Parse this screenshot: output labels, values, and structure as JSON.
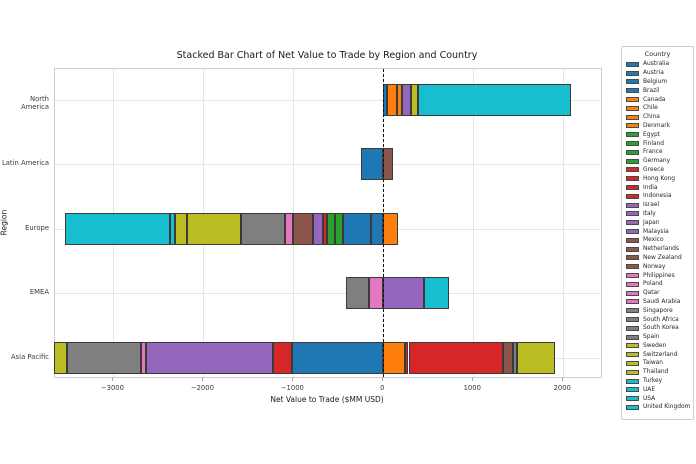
{
  "chart_data": {
    "type": "bar",
    "orientation": "horizontal",
    "stacked": true,
    "title": "Stacked Bar Chart of Net Value to Trade by Region and Country",
    "xlabel": "Net Value to Trade ($MM USD)",
    "ylabel": "Region",
    "categories": [
      "North America",
      "Latin America",
      "Europe",
      "EMEA",
      "Asia Pacific"
    ],
    "xticks": [
      -3000,
      -2000,
      -1000,
      0,
      1000,
      2000
    ],
    "xlim": [
      -3650,
      2420
    ],
    "grid": true,
    "zero_line": {
      "x": 0,
      "style": "dashed",
      "color": "#111111"
    },
    "legend": {
      "title": "Country",
      "position": "right",
      "entries": [
        {
          "label": "Australia",
          "color": "#1f77b4"
        },
        {
          "label": "Austria",
          "color": "#1f77b4"
        },
        {
          "label": "Belgium",
          "color": "#1f77b4"
        },
        {
          "label": "Brazil",
          "color": "#1f77b4"
        },
        {
          "label": "Canada",
          "color": "#ff7f0e"
        },
        {
          "label": "Chile",
          "color": "#ff7f0e"
        },
        {
          "label": "China",
          "color": "#ff7f0e"
        },
        {
          "label": "Denmark",
          "color": "#ff7f0e"
        },
        {
          "label": "Egypt",
          "color": "#2ca02c"
        },
        {
          "label": "Finland",
          "color": "#2ca02c"
        },
        {
          "label": "France",
          "color": "#2ca02c"
        },
        {
          "label": "Germany",
          "color": "#2ca02c"
        },
        {
          "label": "Greece",
          "color": "#d62728"
        },
        {
          "label": "Hong Kong",
          "color": "#d62728"
        },
        {
          "label": "India",
          "color": "#d62728"
        },
        {
          "label": "Indonesia",
          "color": "#d62728"
        },
        {
          "label": "Israel",
          "color": "#9467bd"
        },
        {
          "label": "Italy",
          "color": "#9467bd"
        },
        {
          "label": "Japan",
          "color": "#9467bd"
        },
        {
          "label": "Malaysia",
          "color": "#9467bd"
        },
        {
          "label": "Mexico",
          "color": "#8c564b"
        },
        {
          "label": "Netherlands",
          "color": "#8c564b"
        },
        {
          "label": "New Zealand",
          "color": "#8c564b"
        },
        {
          "label": "Norway",
          "color": "#8c564b"
        },
        {
          "label": "Philippines",
          "color": "#e377c2"
        },
        {
          "label": "Poland",
          "color": "#e377c2"
        },
        {
          "label": "Qatar",
          "color": "#e377c2"
        },
        {
          "label": "Saudi Arabia",
          "color": "#e377c2"
        },
        {
          "label": "Singapore",
          "color": "#7f7f7f"
        },
        {
          "label": "South Africa",
          "color": "#7f7f7f"
        },
        {
          "label": "South Korea",
          "color": "#7f7f7f"
        },
        {
          "label": "Spain",
          "color": "#7f7f7f"
        },
        {
          "label": "Sweden",
          "color": "#bcbd22"
        },
        {
          "label": "Switzerland",
          "color": "#bcbd22"
        },
        {
          "label": "Taiwan",
          "color": "#bcbd22"
        },
        {
          "label": "Thailand",
          "color": "#bcbd22"
        },
        {
          "label": "Turkey",
          "color": "#17becf"
        },
        {
          "label": "UAE",
          "color": "#17becf"
        },
        {
          "label": "USA",
          "color": "#17becf"
        },
        {
          "label": "United Kingdom",
          "color": "#17becf"
        }
      ]
    },
    "bars": [
      {
        "region": "North America",
        "segments": [
          {
            "country": "Brazil",
            "color": "#1f77b4",
            "value": 41
          },
          {
            "country": "Canada",
            "color": "#ff7f0e",
            "value": 111
          },
          {
            "country": "Chile",
            "color": "#ff7f0e",
            "value": 56
          },
          {
            "country": "Malaysia",
            "color": "#9467bd",
            "value": 100
          },
          {
            "country": "Sweden",
            "color": "#bcbd22",
            "value": 76
          },
          {
            "country": "USA",
            "color": "#17becf",
            "value": 1700
          }
        ]
      },
      {
        "region": "Latin America",
        "segments": [
          {
            "country": "Brazil",
            "color": "#1f77b4",
            "value": -244
          },
          {
            "country": "Mexico",
            "color": "#8c564b",
            "value": 111
          }
        ]
      },
      {
        "region": "Europe",
        "segments": [
          {
            "country": "Austria",
            "color": "#1f77b4",
            "value": -141
          },
          {
            "country": "Belgium",
            "color": "#1f77b4",
            "value": -303
          },
          {
            "country": "Denmark",
            "color": "#ff7f0e",
            "value": 160
          },
          {
            "country": "Finland",
            "color": "#2ca02c",
            "value": -93
          },
          {
            "country": "France",
            "color": "#2ca02c",
            "value": -92
          },
          {
            "country": "Greece",
            "color": "#d62728",
            "value": -37
          },
          {
            "country": "Italy",
            "color": "#9467bd",
            "value": -119
          },
          {
            "country": "Netherlands",
            "color": "#8c564b",
            "value": -214
          },
          {
            "country": "Poland",
            "color": "#e377c2",
            "value": -93
          },
          {
            "country": "Spain",
            "color": "#7f7f7f",
            "value": -492
          },
          {
            "country": "Sweden",
            "color": "#bcbd22",
            "value": -600
          },
          {
            "country": "Switzerland",
            "color": "#bcbd22",
            "value": -137
          },
          {
            "country": "Turkey",
            "color": "#17becf",
            "value": -52
          },
          {
            "country": "United Kingdom",
            "color": "#17becf",
            "value": -1163
          }
        ]
      },
      {
        "region": "EMEA",
        "segments": [
          {
            "country": "Israel",
            "color": "#9467bd",
            "value": 451
          },
          {
            "country": "Qatar",
            "color": "#e377c2",
            "value": -160
          },
          {
            "country": "South Africa",
            "color": "#7f7f7f",
            "value": -259
          },
          {
            "country": "UAE",
            "color": "#17becf",
            "value": 278
          }
        ]
      },
      {
        "region": "Asia Pacific",
        "segments": [
          {
            "country": "Australia",
            "color": "#1f77b4",
            "value": -1018
          },
          {
            "country": "China",
            "color": "#ff7f0e",
            "value": 241
          },
          {
            "country": "Hong Kong",
            "color": "#d62728",
            "value": -204
          },
          {
            "country": "India",
            "color": "#d62728",
            "value": 39
          },
          {
            "country": "Indonesia",
            "color": "#d62728",
            "value": 1053
          },
          {
            "country": "Japan",
            "color": "#9467bd",
            "value": -1411
          },
          {
            "country": "New Zealand",
            "color": "#8c564b",
            "value": 111
          },
          {
            "country": "Philippines",
            "color": "#e377c2",
            "value": -56
          },
          {
            "country": "Singapore",
            "color": "#7f7f7f",
            "value": -833
          },
          {
            "country": "South Korea",
            "color": "#7f7f7f",
            "value": 37
          },
          {
            "country": "Taiwan",
            "color": "#bcbd22",
            "value": -137
          },
          {
            "country": "Thailand",
            "color": "#bcbd22",
            "value": 426
          }
        ]
      }
    ]
  }
}
